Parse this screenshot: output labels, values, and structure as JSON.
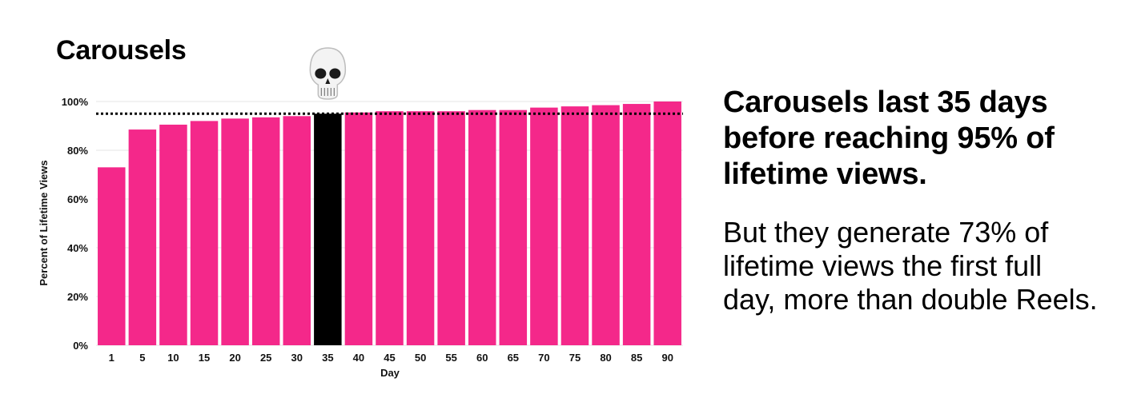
{
  "title": "Carousels",
  "headline": "Carousels last 35 days before reaching 95% of lifetime views.",
  "body": "But they generate 73% of lifetime views the first full day, more than double Reels.",
  "colors": {
    "bar": "#f4288a",
    "highlight": "#000000",
    "grid": "#e6e6e6",
    "reference_line": "#000000"
  },
  "marker_icon": "skull-emoji",
  "chart_data": {
    "type": "bar",
    "title": "Carousels",
    "xlabel": "Day",
    "ylabel": "Percent of Lifetime Views",
    "categories": [
      "1",
      "5",
      "10",
      "15",
      "20",
      "25",
      "30",
      "35",
      "40",
      "45",
      "50",
      "55",
      "60",
      "65",
      "70",
      "75",
      "80",
      "85",
      "90"
    ],
    "values": [
      73,
      88.5,
      90.5,
      92,
      93,
      93.5,
      94,
      95,
      95.5,
      96,
      96,
      96,
      96.5,
      96.5,
      97.5,
      98,
      98.5,
      99,
      100
    ],
    "highlight_category": "35",
    "reference_line": 95,
    "ylim": [
      0,
      100
    ],
    "yticks": [
      "0%",
      "20%",
      "40%",
      "60%",
      "80%",
      "100%"
    ],
    "grid": true,
    "legend": "none"
  }
}
